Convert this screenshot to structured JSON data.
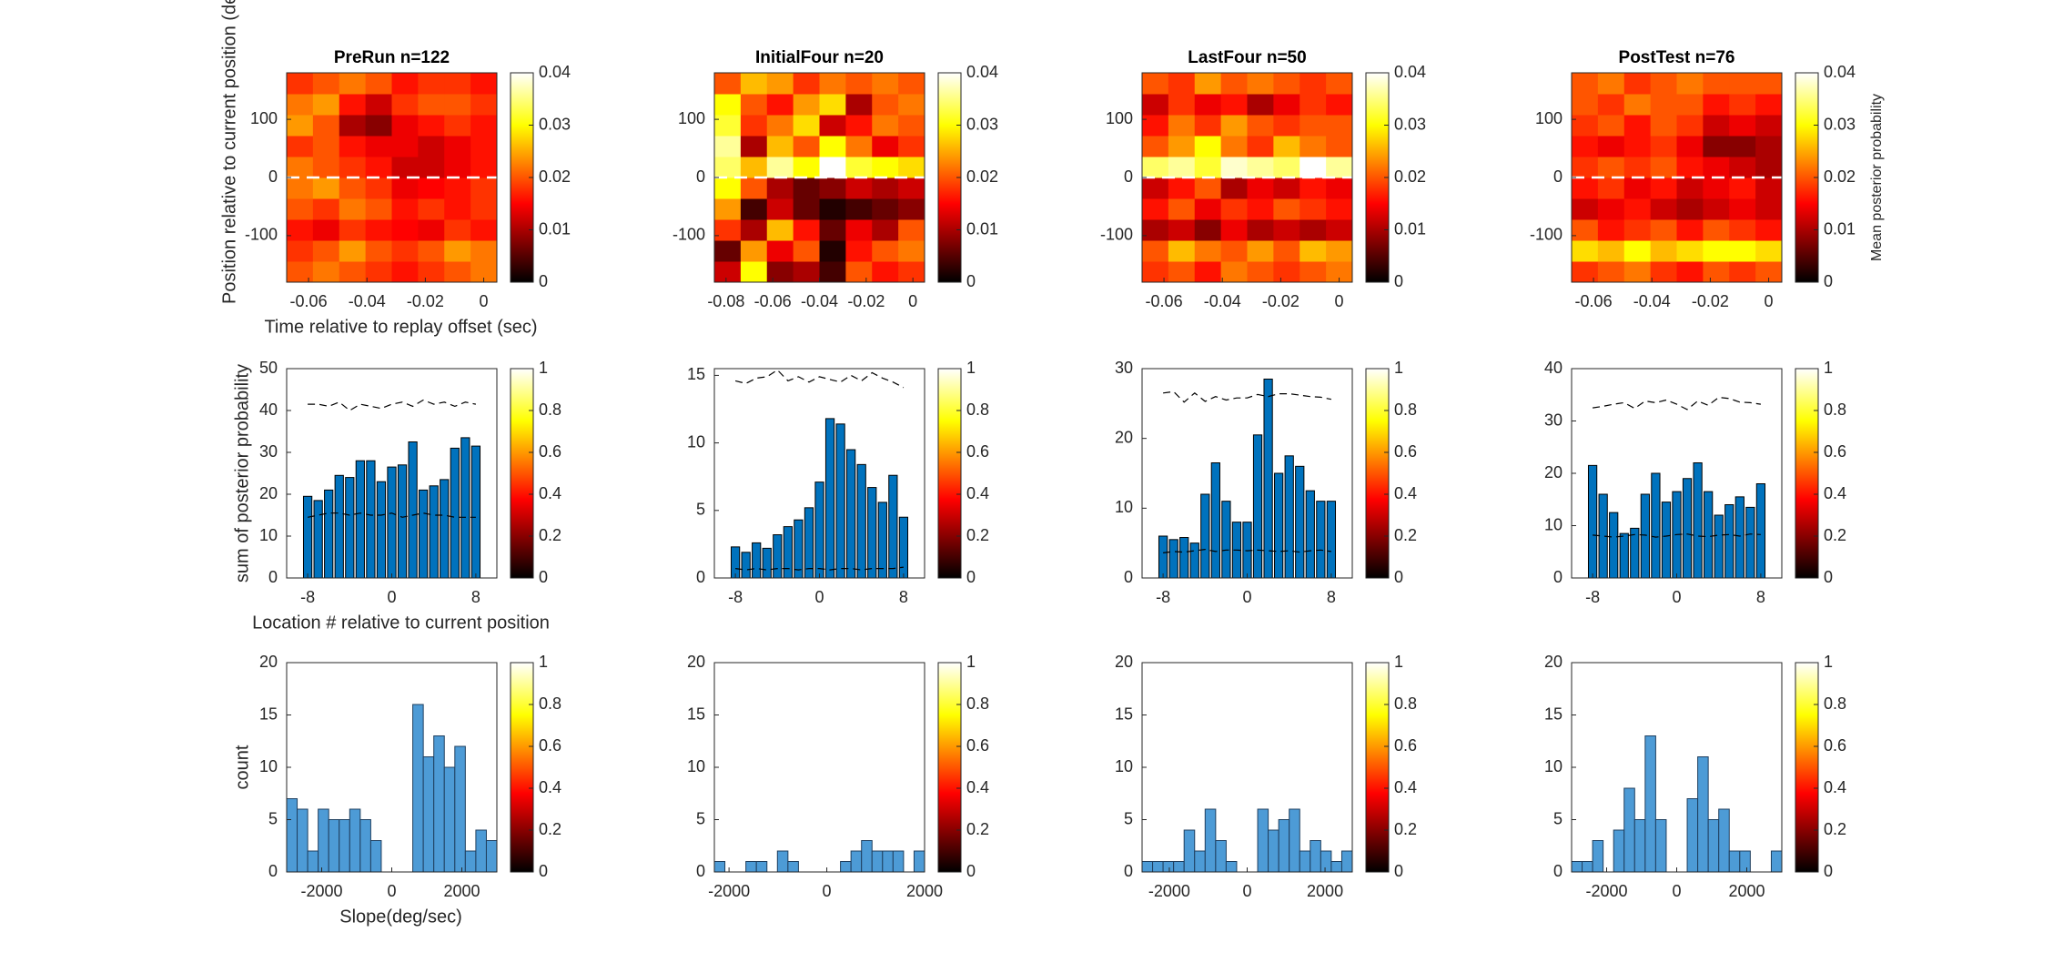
{
  "chart_data": [
    {
      "type": "heatmap",
      "title": "PreRun n=122",
      "ylabel": "Position relative to current position (deg)",
      "xlabel": "Time relative to replay offset (sec)",
      "xlim": [
        -0.0675,
        0.0045
      ],
      "ylim": [
        -180,
        180
      ],
      "xticks": [
        -0.06,
        -0.04,
        -0.02,
        0
      ],
      "yticks": [
        -100,
        0,
        100
      ],
      "hline": 0,
      "colormap": "hot",
      "z": [
        [
          0.02,
          0.022,
          0.02,
          0.018,
          0.016,
          0.018,
          0.02,
          0.022
        ],
        [
          0.018,
          0.02,
          0.024,
          0.02,
          0.018,
          0.02,
          0.024,
          0.022
        ],
        [
          0.016,
          0.014,
          0.018,
          0.016,
          0.015,
          0.014,
          0.018,
          0.016
        ],
        [
          0.02,
          0.018,
          0.022,
          0.02,
          0.016,
          0.018,
          0.016,
          0.018
        ],
        [
          0.022,
          0.024,
          0.02,
          0.018,
          0.014,
          0.015,
          0.016,
          0.018
        ],
        [
          0.022,
          0.02,
          0.018,
          0.016,
          0.012,
          0.012,
          0.014,
          0.016
        ],
        [
          0.018,
          0.02,
          0.016,
          0.014,
          0.014,
          0.012,
          0.014,
          0.016
        ],
        [
          0.024,
          0.02,
          0.01,
          0.008,
          0.014,
          0.016,
          0.018,
          0.016
        ],
        [
          0.022,
          0.024,
          0.016,
          0.012,
          0.018,
          0.02,
          0.02,
          0.018
        ],
        [
          0.018,
          0.02,
          0.022,
          0.02,
          0.016,
          0.018,
          0.018,
          0.016
        ]
      ],
      "colorbar": {
        "lim": [
          0,
          0.04
        ],
        "ticks": [
          0,
          0.01,
          0.02,
          0.03,
          0.04
        ]
      }
    },
    {
      "type": "heatmap",
      "title": "InitialFour n=20",
      "xlim": [
        -0.085,
        0.005
      ],
      "ylim": [
        -180,
        180
      ],
      "xticks": [
        -0.08,
        -0.06,
        -0.04,
        -0.02,
        0
      ],
      "yticks": [
        -100,
        0,
        100
      ],
      "hline": 0,
      "colormap": "hot",
      "z": [
        [
          0.012,
          0.03,
          0.008,
          0.01,
          0.004,
          0.02,
          0.016,
          0.018
        ],
        [
          0.006,
          0.024,
          0.014,
          0.02,
          0.002,
          0.016,
          0.02,
          0.022
        ],
        [
          0.018,
          0.01,
          0.026,
          0.016,
          0.006,
          0.014,
          0.01,
          0.02
        ],
        [
          0.024,
          0.004,
          0.012,
          0.006,
          0.002,
          0.004,
          0.006,
          0.008
        ],
        [
          0.03,
          0.02,
          0.01,
          0.006,
          0.008,
          0.012,
          0.01,
          0.012
        ],
        [
          0.034,
          0.026,
          0.036,
          0.03,
          0.04,
          0.032,
          0.03,
          0.028
        ],
        [
          0.036,
          0.01,
          0.026,
          0.02,
          0.03,
          0.022,
          0.014,
          0.018
        ],
        [
          0.032,
          0.018,
          0.022,
          0.028,
          0.012,
          0.016,
          0.022,
          0.02
        ],
        [
          0.03,
          0.02,
          0.016,
          0.024,
          0.028,
          0.01,
          0.02,
          0.022
        ],
        [
          0.02,
          0.026,
          0.024,
          0.018,
          0.022,
          0.02,
          0.022,
          0.02
        ]
      ],
      "colorbar": {
        "lim": [
          0,
          0.04
        ],
        "ticks": [
          0,
          0.01,
          0.02,
          0.03,
          0.04
        ]
      }
    },
    {
      "type": "heatmap",
      "title": "LastFour n=50",
      "xlim": [
        -0.0675,
        0.0045
      ],
      "ylim": [
        -180,
        180
      ],
      "xticks": [
        -0.06,
        -0.04,
        -0.02,
        0
      ],
      "yticks": [
        -100,
        0,
        100
      ],
      "hline": 0,
      "colormap": "hot",
      "z": [
        [
          0.018,
          0.02,
          0.016,
          0.022,
          0.02,
          0.018,
          0.02,
          0.022
        ],
        [
          0.02,
          0.026,
          0.022,
          0.02,
          0.024,
          0.02,
          0.026,
          0.024
        ],
        [
          0.01,
          0.012,
          0.008,
          0.014,
          0.01,
          0.012,
          0.01,
          0.012
        ],
        [
          0.016,
          0.02,
          0.014,
          0.018,
          0.016,
          0.02,
          0.018,
          0.016
        ],
        [
          0.012,
          0.016,
          0.02,
          0.01,
          0.014,
          0.012,
          0.016,
          0.014
        ],
        [
          0.034,
          0.036,
          0.032,
          0.038,
          0.036,
          0.034,
          0.04,
          0.036
        ],
        [
          0.02,
          0.024,
          0.03,
          0.022,
          0.018,
          0.026,
          0.022,
          0.02
        ],
        [
          0.016,
          0.022,
          0.018,
          0.024,
          0.02,
          0.018,
          0.02,
          0.02
        ],
        [
          0.012,
          0.018,
          0.014,
          0.016,
          0.01,
          0.014,
          0.018,
          0.016
        ],
        [
          0.02,
          0.018,
          0.024,
          0.02,
          0.022,
          0.02,
          0.018,
          0.02
        ]
      ],
      "colorbar": {
        "lim": [
          0,
          0.04
        ],
        "ticks": [
          0,
          0.01,
          0.02,
          0.03,
          0.04
        ]
      }
    },
    {
      "type": "heatmap",
      "title": "PostTest n=76",
      "xlim": [
        -0.0675,
        0.0045
      ],
      "ylim": [
        -180,
        180
      ],
      "xticks": [
        -0.06,
        -0.04,
        -0.02,
        0
      ],
      "yticks": [
        -100,
        0,
        100
      ],
      "hline": 0,
      "colormap": "hot",
      "z": [
        [
          0.018,
          0.02,
          0.022,
          0.018,
          0.016,
          0.02,
          0.018,
          0.02
        ],
        [
          0.028,
          0.026,
          0.03,
          0.026,
          0.028,
          0.03,
          0.03,
          0.028
        ],
        [
          0.02,
          0.016,
          0.018,
          0.02,
          0.016,
          0.02,
          0.018,
          0.016
        ],
        [
          0.012,
          0.014,
          0.016,
          0.012,
          0.01,
          0.012,
          0.014,
          0.012
        ],
        [
          0.016,
          0.018,
          0.014,
          0.016,
          0.012,
          0.014,
          0.016,
          0.012
        ],
        [
          0.018,
          0.02,
          0.018,
          0.02,
          0.016,
          0.014,
          0.012,
          0.01
        ],
        [
          0.016,
          0.014,
          0.016,
          0.018,
          0.014,
          0.008,
          0.008,
          0.01
        ],
        [
          0.018,
          0.02,
          0.016,
          0.02,
          0.018,
          0.012,
          0.014,
          0.012
        ],
        [
          0.02,
          0.018,
          0.022,
          0.02,
          0.02,
          0.016,
          0.018,
          0.016
        ],
        [
          0.02,
          0.022,
          0.018,
          0.02,
          0.022,
          0.02,
          0.02,
          0.02
        ]
      ],
      "colorbar": {
        "lim": [
          0,
          0.04
        ],
        "ticks": [
          0,
          0.01,
          0.02,
          0.03,
          0.04
        ],
        "label": "Mean posterior probability"
      }
    },
    {
      "type": "bar",
      "ylabel": "sum of posterior probability",
      "xlabel": "Location # relative to current position",
      "color": "#0072bd",
      "x": [
        -8,
        -7,
        -6,
        -5,
        -4,
        -3,
        -2,
        -1,
        0,
        1,
        2,
        3,
        4,
        5,
        6,
        7,
        8
      ],
      "xlim": [
        -10,
        10
      ],
      "ylim": [
        0,
        50
      ],
      "xticks": [
        -8,
        0,
        8
      ],
      "yticks": [
        0,
        10,
        20,
        30,
        40,
        50
      ],
      "values": [
        19.5,
        18.5,
        21,
        24.5,
        24,
        28,
        28,
        23,
        26.5,
        27,
        32.5,
        21,
        22,
        23.5,
        31,
        33.5,
        31.5
      ],
      "dashed_lines": [
        {
          "values": [
            41.5,
            41.5,
            41,
            42,
            40,
            41.5,
            41,
            40.5,
            41.5,
            42,
            41,
            42.5,
            41.5,
            42,
            41,
            42,
            41.5
          ]
        },
        {
          "values": [
            14.5,
            15,
            15.5,
            15.5,
            15,
            15.5,
            15,
            15,
            15.5,
            14.5,
            15,
            15.5,
            15,
            15,
            14.5,
            14.5,
            14.5
          ]
        }
      ],
      "colorbar": {
        "lim": [
          0,
          1
        ],
        "ticks": [
          0,
          0.2,
          0.4,
          0.6,
          0.8,
          1
        ]
      }
    },
    {
      "type": "bar",
      "color": "#0072bd",
      "x": [
        -8,
        -7,
        -6,
        -5,
        -4,
        -3,
        -2,
        -1,
        0,
        1,
        2,
        3,
        4,
        5,
        6,
        7,
        8
      ],
      "xlim": [
        -10,
        10
      ],
      "ylim": [
        0,
        15.5
      ],
      "xticks": [
        -8,
        0,
        8
      ],
      "yticks": [
        0,
        5,
        10,
        15
      ],
      "values": [
        2.3,
        1.9,
        2.6,
        2.2,
        3.2,
        3.8,
        4.3,
        5.2,
        7.1,
        11.8,
        11.4,
        9.5,
        8.4,
        6.7,
        5.6,
        7.6,
        4.5
      ],
      "dashed_lines": [
        {
          "values": [
            14.6,
            14.4,
            14.8,
            14.9,
            15.4,
            14.6,
            14.9,
            14.5,
            14.9,
            14.7,
            14.5,
            15.0,
            14.6,
            15.2,
            14.8,
            14.5,
            14.1
          ]
        },
        {
          "values": [
            0.7,
            0.6,
            0.7,
            0.6,
            0.7,
            0.7,
            0.6,
            0.7,
            0.7,
            0.6,
            0.7,
            0.7,
            0.6,
            0.7,
            0.7,
            0.7,
            0.8
          ]
        }
      ],
      "colorbar": {
        "lim": [
          0,
          1
        ],
        "ticks": [
          0,
          0.2,
          0.4,
          0.6,
          0.8,
          1
        ]
      }
    },
    {
      "type": "bar",
      "color": "#0072bd",
      "x": [
        -8,
        -7,
        -6,
        -5,
        -4,
        -3,
        -2,
        -1,
        0,
        1,
        2,
        3,
        4,
        5,
        6,
        7,
        8
      ],
      "xlim": [
        -10,
        10
      ],
      "ylim": [
        0,
        30
      ],
      "xticks": [
        -8,
        0,
        8
      ],
      "yticks": [
        0,
        10,
        20,
        30
      ],
      "values": [
        6,
        5.5,
        5.8,
        5,
        12,
        16.5,
        11,
        8,
        8,
        20.5,
        28.5,
        15,
        17.5,
        16,
        12.5,
        11,
        11
      ],
      "dashed_lines": [
        {
          "values": [
            26.5,
            26.7,
            25.2,
            26.5,
            25.3,
            26,
            25.5,
            25.8,
            25.8,
            26.3,
            26,
            26.4,
            26.4,
            26.2,
            26,
            25.9,
            25.6
          ]
        },
        {
          "values": [
            3.6,
            3.8,
            3.7,
            3.9,
            4.1,
            3.8,
            4.0,
            4.0,
            3.9,
            4.0,
            3.9,
            3.8,
            3.9,
            3.7,
            3.9,
            4.0,
            3.8
          ]
        }
      ],
      "colorbar": {
        "lim": [
          0,
          1
        ],
        "ticks": [
          0,
          0.2,
          0.4,
          0.6,
          0.8,
          1
        ]
      }
    },
    {
      "type": "bar",
      "color": "#0072bd",
      "x": [
        -8,
        -7,
        -6,
        -5,
        -4,
        -3,
        -2,
        -1,
        0,
        1,
        2,
        3,
        4,
        5,
        6,
        7,
        8
      ],
      "xlim": [
        -10,
        10
      ],
      "ylim": [
        0,
        40
      ],
      "xticks": [
        -8,
        0,
        8
      ],
      "yticks": [
        0,
        10,
        20,
        30,
        40
      ],
      "values": [
        21.5,
        16,
        12.5,
        8.5,
        9.5,
        16,
        20,
        14.5,
        16.5,
        19,
        22,
        16.5,
        12,
        14,
        15.5,
        13.5,
        18
      ],
      "dashed_lines": [
        {
          "values": [
            32.5,
            32.8,
            33.2,
            33.5,
            32.4,
            33.8,
            33.5,
            34,
            33.2,
            32.2,
            33.8,
            33,
            34.5,
            34.3,
            33.6,
            33.5,
            33.2
          ]
        },
        {
          "values": [
            8.2,
            8,
            7.8,
            8,
            8.3,
            8.2,
            7.8,
            8,
            8.3,
            8.4,
            8,
            7.9,
            8.2,
            8.3,
            8,
            8.4,
            8.3
          ]
        }
      ],
      "colorbar": {
        "lim": [
          0,
          1
        ],
        "ticks": [
          0,
          0.2,
          0.4,
          0.6,
          0.8,
          1
        ]
      }
    },
    {
      "type": "histogram",
      "ylabel": "count",
      "xlabel": "Slope(deg/sec)",
      "color": "#4d9bd6",
      "xlim": [
        -3000,
        3000
      ],
      "ylim": [
        0,
        20
      ],
      "xticks": [
        -2000,
        0,
        2000
      ],
      "yticks": [
        0,
        5,
        10,
        15,
        20
      ],
      "bins": [
        -3000,
        -2700,
        -2400,
        -2100,
        -1800,
        -1500,
        -1200,
        -900,
        -600,
        -300,
        0,
        300,
        600,
        900,
        1200,
        1500,
        1800,
        2100,
        2400,
        2700,
        3000
      ],
      "values": [
        7,
        6,
        2,
        6,
        5,
        5,
        6,
        5,
        3,
        0,
        0,
        0,
        16,
        11,
        13,
        10,
        12,
        2,
        4,
        3
      ],
      "colorbar": {
        "lim": [
          0,
          1
        ],
        "ticks": [
          0,
          0.2,
          0.4,
          0.6,
          0.8,
          1
        ]
      }
    },
    {
      "type": "histogram",
      "color": "#4d9bd6",
      "xlim": [
        -2300,
        2000
      ],
      "ylim": [
        0,
        20
      ],
      "xticks": [
        -2000,
        0,
        2000
      ],
      "yticks": [
        0,
        5,
        10,
        15,
        20
      ],
      "bins": [
        -2300,
        -2085,
        -1870,
        -1655,
        -1440,
        -1225,
        -1010,
        -795,
        -580,
        -365,
        -150,
        65,
        280,
        495,
        710,
        925,
        1140,
        1355,
        1570,
        1785,
        2000
      ],
      "values": [
        1,
        0,
        0,
        1,
        1,
        0,
        2,
        1,
        0,
        0,
        0,
        0,
        1,
        2,
        3,
        2,
        2,
        2,
        0,
        2
      ],
      "colorbar": {
        "lim": [
          0,
          1
        ],
        "ticks": [
          0,
          0.2,
          0.4,
          0.6,
          0.8,
          1
        ]
      }
    },
    {
      "type": "histogram",
      "color": "#4d9bd6",
      "xlim": [
        -2700,
        2700
      ],
      "ylim": [
        0,
        20
      ],
      "xticks": [
        -2000,
        0,
        2000
      ],
      "yticks": [
        0,
        5,
        10,
        15,
        20
      ],
      "bins": [
        -2700,
        -2430,
        -2160,
        -1890,
        -1620,
        -1350,
        -1080,
        -810,
        -540,
        -270,
        0,
        270,
        540,
        810,
        1080,
        1350,
        1620,
        1890,
        2160,
        2430,
        2700
      ],
      "values": [
        1,
        1,
        1,
        1,
        4,
        2,
        6,
        3,
        1,
        0,
        0,
        6,
        4,
        5,
        6,
        2,
        3,
        2,
        1,
        2
      ],
      "colorbar": {
        "lim": [
          0,
          1
        ],
        "ticks": [
          0,
          0.2,
          0.4,
          0.6,
          0.8,
          1
        ]
      }
    },
    {
      "type": "histogram",
      "color": "#4d9bd6",
      "xlim": [
        -3000,
        3000
      ],
      "ylim": [
        0,
        20
      ],
      "xticks": [
        -2000,
        0,
        2000
      ],
      "yticks": [
        0,
        5,
        10,
        15,
        20
      ],
      "bins": [
        -3000,
        -2700,
        -2400,
        -2100,
        -1800,
        -1500,
        -1200,
        -900,
        -600,
        -300,
        0,
        300,
        600,
        900,
        1200,
        1500,
        1800,
        2100,
        2400,
        2700,
        3000
      ],
      "values": [
        1,
        1,
        3,
        0,
        4,
        8,
        5,
        13,
        5,
        0,
        0,
        7,
        11,
        5,
        6,
        2,
        2,
        0,
        0,
        2
      ],
      "colorbar": {
        "lim": [
          0,
          1
        ],
        "ticks": [
          0,
          0.2,
          0.4,
          0.6,
          0.8,
          1
        ]
      }
    }
  ]
}
